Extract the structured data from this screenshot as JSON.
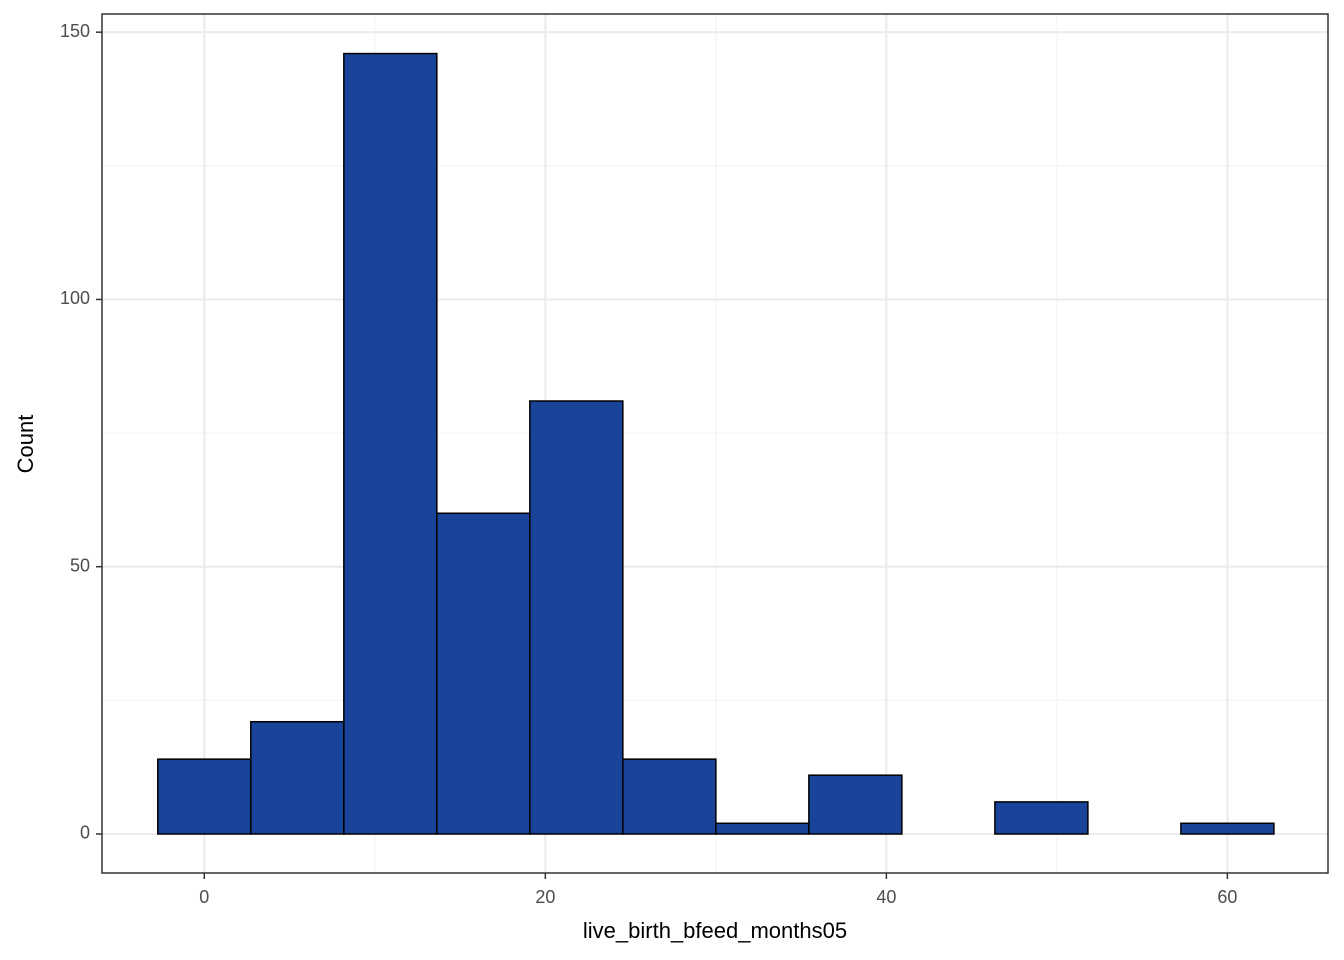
{
  "chart_data": {
    "type": "histogram",
    "x_label": "live_birth_bfeed_months05",
    "y_label": "Count",
    "bins": [
      -2.727,
      2.727,
      8.182,
      13.636,
      19.091,
      24.545,
      30,
      35.455,
      40.909,
      46.364,
      51.818,
      57.273,
      62.727
    ],
    "values": [
      14,
      21,
      146,
      60,
      81,
      14,
      2,
      11,
      0,
      6,
      0,
      2
    ],
    "color": "#1a4499",
    "edgecolor": "#000000",
    "xlim": [
      -6,
      65.9
    ],
    "ylim": [
      -7.3,
      153.4
    ],
    "xticks": [
      0,
      20,
      40,
      60
    ],
    "yticks": [
      0,
      50,
      100,
      150
    ],
    "xminor": [
      10,
      30,
      50
    ],
    "yminor": [
      25,
      75,
      125
    ],
    "grid": true
  }
}
